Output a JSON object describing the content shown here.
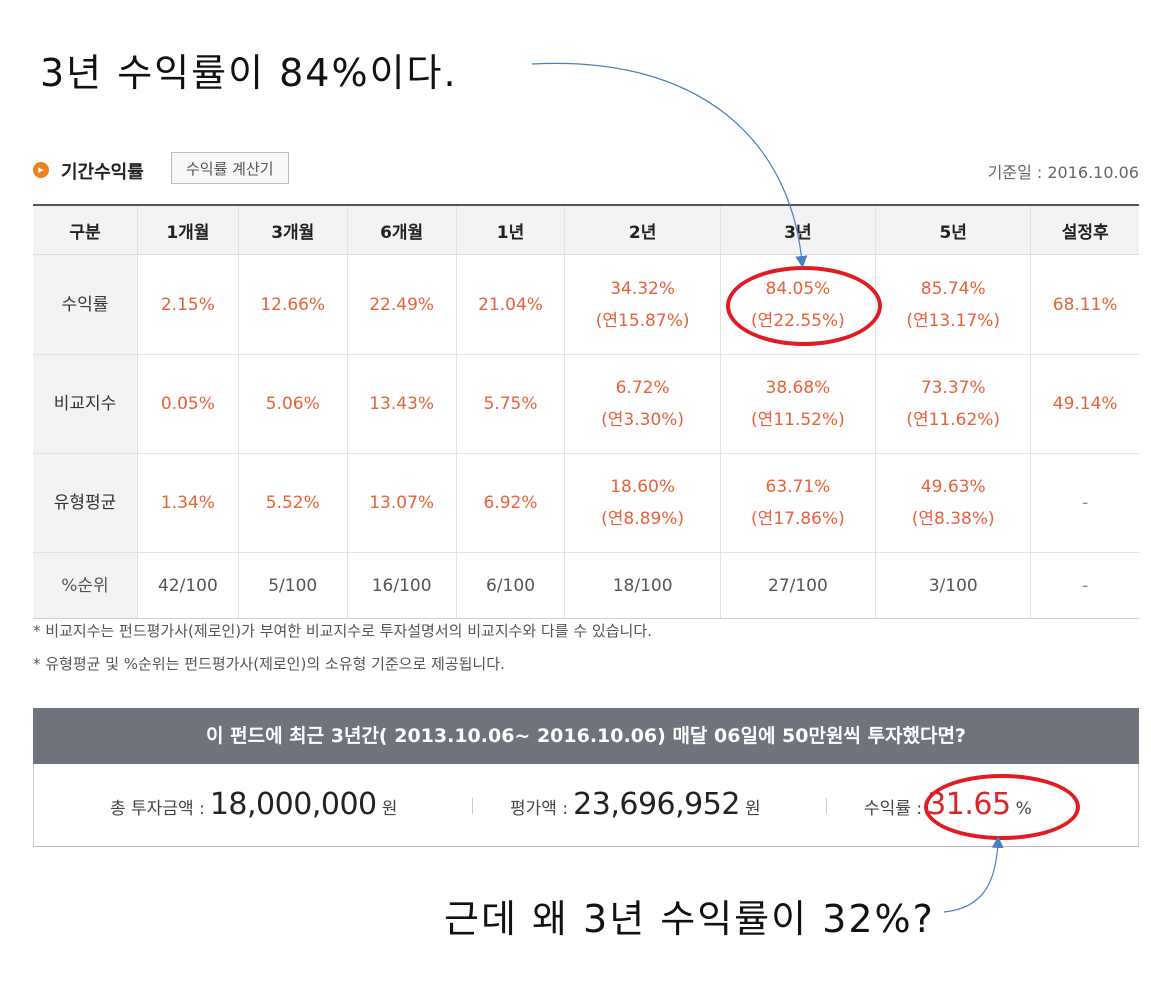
{
  "annotations": {
    "top_note": "3년 수익률이   84%이다.",
    "bottom_note": "근데 왜 3년 수익률이 32%?"
  },
  "section": {
    "bullet_icon": "chevron-right-icon",
    "title": "기간수익률",
    "calc_button": "수익률 계산기",
    "base_date": "기준일 : 2016.10.06"
  },
  "table": {
    "headers": [
      "구분",
      "1개월",
      "3개월",
      "6개월",
      "1년",
      "2년",
      "3년",
      "5년",
      "설정후"
    ],
    "rows": [
      {
        "label": "수익률",
        "cells": [
          {
            "v": "2.15%"
          },
          {
            "v": "12.66%"
          },
          {
            "v": "22.49%"
          },
          {
            "v": "21.04%"
          },
          {
            "v": "34.32%",
            "a": "(연15.87%)"
          },
          {
            "v": "84.05%",
            "a": "(연22.55%)"
          },
          {
            "v": "85.74%",
            "a": "(연13.17%)"
          },
          {
            "v": "68.11%"
          }
        ]
      },
      {
        "label": "비교지수",
        "cells": [
          {
            "v": "0.05%"
          },
          {
            "v": "5.06%"
          },
          {
            "v": "13.43%"
          },
          {
            "v": "5.75%"
          },
          {
            "v": "6.72%",
            "a": "(연3.30%)"
          },
          {
            "v": "38.68%",
            "a": "(연11.52%)"
          },
          {
            "v": "73.37%",
            "a": "(연11.62%)"
          },
          {
            "v": "49.14%"
          }
        ]
      },
      {
        "label": "유형평균",
        "cells": [
          {
            "v": "1.34%"
          },
          {
            "v": "5.52%"
          },
          {
            "v": "13.07%"
          },
          {
            "v": "6.92%"
          },
          {
            "v": "18.60%",
            "a": "(연8.89%)"
          },
          {
            "v": "63.71%",
            "a": "(연17.86%)"
          },
          {
            "v": "49.63%",
            "a": "(연8.38%)"
          },
          {
            "v": "-"
          }
        ]
      },
      {
        "label": "%순위",
        "cells": [
          {
            "v": "42/100"
          },
          {
            "v": "5/100"
          },
          {
            "v": "16/100"
          },
          {
            "v": "6/100"
          },
          {
            "v": "18/100"
          },
          {
            "v": "27/100"
          },
          {
            "v": "3/100"
          },
          {
            "v": "-"
          }
        ]
      }
    ]
  },
  "footnotes": [
    "* 비교지수는 펀드평가사(제로인)가 부여한 비교지수로 투자설명서의 비교지수와 다를 수 있습니다.",
    "* 유형평균 및 %순위는 펀드평가사(제로인)의 소유형 기준으로 제공됩니다."
  ],
  "simulation": {
    "header": "이 펀드에 최근 3년간( 2013.10.06~ 2016.10.06) 매달 06일에 50만원씩 투자했다면?",
    "total_label": "총 투자금액 :",
    "total_value": "18,000,000",
    "total_unit": "원",
    "eval_label": "평가액 :",
    "eval_value": "23,696,952",
    "eval_unit": "원",
    "rate_label": "수익률 :",
    "rate_value": "31.65",
    "rate_unit": "%"
  },
  "colors": {
    "accent_orange": "#f0801a",
    "value_red": "#e8613b",
    "highlight_red": "#e21b22",
    "header_gray": "#6f737c",
    "arrow_blue": "#4a7fc1"
  }
}
